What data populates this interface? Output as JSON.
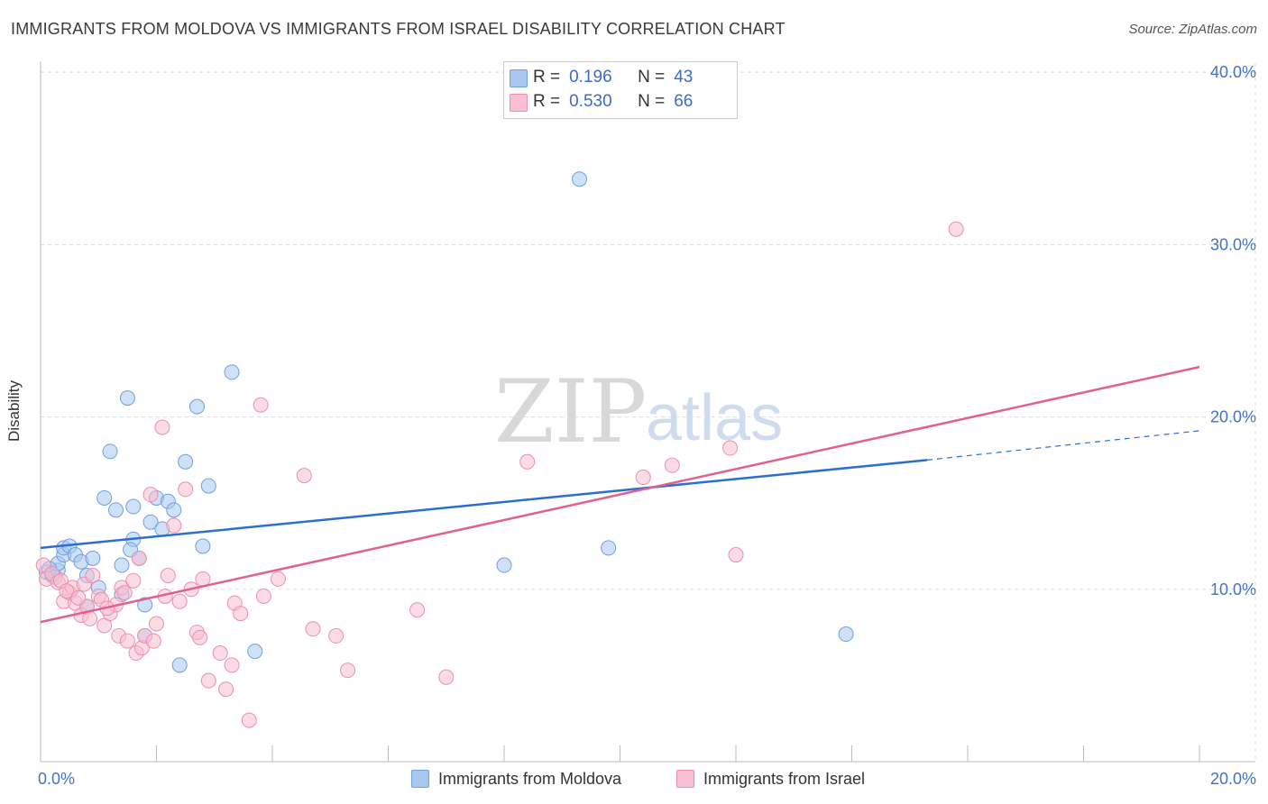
{
  "title": "IMMIGRANTS FROM MOLDOVA VS IMMIGRANTS FROM ISRAEL DISABILITY CORRELATION CHART",
  "source": "Source: ZipAtlas.com",
  "legend_top": [
    {
      "r_label": "R =",
      "r_value": "0.196",
      "n_label": "N =",
      "n_value": "43",
      "color": "#a8c8f0",
      "border": "#6f9fe0"
    },
    {
      "r_label": "R =",
      "r_value": "0.530",
      "n_label": "N =",
      "n_value": "66",
      "color": "#f8c0d0",
      "border": "#ec8fae"
    }
  ],
  "legend_bottom": [
    {
      "label": "Immigrants from Moldova",
      "color": "#a8c8f0",
      "border": "#6f9fe0"
    },
    {
      "label": "Immigrants from Israel",
      "color": "#f8c0d0",
      "border": "#ec8fae"
    }
  ],
  "watermark": {
    "zip": "ZIP",
    "atlas": "atlas"
  },
  "chart_data": {
    "type": "scatter",
    "title": "IMMIGRANTS FROM MOLDOVA VS IMMIGRANTS FROM ISRAEL DISABILITY CORRELATION CHART",
    "xlabel": "",
    "ylabel": "Disability",
    "xlim": [
      0,
      20
    ],
    "ylim": [
      0,
      40
    ],
    "x_ticks": [
      {
        "value": 0,
        "label": "0.0%"
      },
      {
        "value": 20,
        "label": "20.0%"
      }
    ],
    "y_ticks": [
      {
        "value": 10,
        "label": "10.0%"
      },
      {
        "value": 20,
        "label": "20.0%"
      },
      {
        "value": 30,
        "label": "30.0%"
      },
      {
        "value": 40,
        "label": "40.0%"
      }
    ],
    "grid": true,
    "series": [
      {
        "name": "Immigrants from Moldova",
        "color": "#6f9fe0",
        "fill": "#a8c8f0",
        "trend_color": "#2a6fd0",
        "trend": {
          "x0": 0,
          "y0": 12.4,
          "x1": 15.3,
          "y1": 17.5,
          "dash_to_x": 20,
          "dash_to_y": 19.2
        },
        "points": [
          [
            0.1,
            11.0
          ],
          [
            0.2,
            10.8
          ],
          [
            0.3,
            11.1
          ],
          [
            0.3,
            11.5
          ],
          [
            0.4,
            12.0
          ],
          [
            0.4,
            12.4
          ],
          [
            0.5,
            12.5
          ],
          [
            0.6,
            12.0
          ],
          [
            0.7,
            11.6
          ],
          [
            0.8,
            10.8
          ],
          [
            0.8,
            9.0
          ],
          [
            0.9,
            11.8
          ],
          [
            1.0,
            10.1
          ],
          [
            1.1,
            15.3
          ],
          [
            1.3,
            14.6
          ],
          [
            1.2,
            18.0
          ],
          [
            1.4,
            9.7
          ],
          [
            1.4,
            11.4
          ],
          [
            1.5,
            21.1
          ],
          [
            1.6,
            14.8
          ],
          [
            1.6,
            12.9
          ],
          [
            1.7,
            11.8
          ],
          [
            1.8,
            9.1
          ],
          [
            1.8,
            7.3
          ],
          [
            1.9,
            13.9
          ],
          [
            2.0,
            15.3
          ],
          [
            2.1,
            13.5
          ],
          [
            2.2,
            15.1
          ],
          [
            2.3,
            14.6
          ],
          [
            2.4,
            5.6
          ],
          [
            2.5,
            17.4
          ],
          [
            2.7,
            20.6
          ],
          [
            2.8,
            12.5
          ],
          [
            2.9,
            16.0
          ],
          [
            3.3,
            22.6
          ],
          [
            3.7,
            6.4
          ],
          [
            8.0,
            11.4
          ],
          [
            9.3,
            33.8
          ],
          [
            9.8,
            12.4
          ],
          [
            13.9,
            7.4
          ],
          [
            0.15,
            11.2
          ],
          [
            0.25,
            10.7
          ],
          [
            1.55,
            12.3
          ]
        ]
      },
      {
        "name": "Immigrants from Israel",
        "color": "#ec8fae",
        "fill": "#f8c0d0",
        "trend_color": "#e0608e",
        "trend": {
          "x0": 0,
          "y0": 8.1,
          "x1": 20,
          "y1": 22.9
        },
        "points": [
          [
            0.05,
            11.4
          ],
          [
            0.1,
            10.6
          ],
          [
            0.2,
            10.9
          ],
          [
            0.3,
            10.4
          ],
          [
            0.35,
            10.5
          ],
          [
            0.4,
            9.3
          ],
          [
            0.5,
            9.8
          ],
          [
            0.55,
            10.1
          ],
          [
            0.6,
            9.2
          ],
          [
            0.7,
            8.5
          ],
          [
            0.75,
            10.3
          ],
          [
            0.8,
            9.0
          ],
          [
            0.85,
            8.3
          ],
          [
            0.9,
            10.8
          ],
          [
            1.0,
            9.6
          ],
          [
            1.05,
            9.4
          ],
          [
            1.1,
            7.9
          ],
          [
            1.2,
            8.6
          ],
          [
            1.3,
            9.1
          ],
          [
            1.35,
            7.3
          ],
          [
            1.4,
            10.1
          ],
          [
            1.45,
            9.8
          ],
          [
            1.5,
            7.0
          ],
          [
            1.6,
            10.5
          ],
          [
            1.65,
            6.3
          ],
          [
            1.7,
            11.8
          ],
          [
            1.75,
            6.6
          ],
          [
            1.8,
            7.3
          ],
          [
            1.9,
            15.5
          ],
          [
            1.95,
            7.0
          ],
          [
            2.0,
            8.0
          ],
          [
            2.1,
            19.4
          ],
          [
            2.15,
            9.6
          ],
          [
            2.2,
            10.8
          ],
          [
            2.3,
            13.7
          ],
          [
            2.4,
            9.3
          ],
          [
            2.5,
            15.8
          ],
          [
            2.6,
            10.0
          ],
          [
            2.7,
            7.5
          ],
          [
            2.75,
            7.2
          ],
          [
            2.8,
            10.6
          ],
          [
            2.9,
            4.7
          ],
          [
            3.1,
            6.3
          ],
          [
            3.2,
            4.2
          ],
          [
            3.3,
            5.6
          ],
          [
            3.35,
            9.2
          ],
          [
            3.45,
            8.6
          ],
          [
            3.6,
            2.4
          ],
          [
            3.8,
            20.7
          ],
          [
            3.85,
            9.6
          ],
          [
            4.1,
            10.6
          ],
          [
            4.55,
            16.6
          ],
          [
            4.7,
            7.7
          ],
          [
            5.1,
            7.3
          ],
          [
            5.3,
            5.3
          ],
          [
            6.5,
            8.8
          ],
          [
            7.0,
            4.9
          ],
          [
            8.4,
            17.4
          ],
          [
            10.4,
            16.5
          ],
          [
            10.9,
            17.2
          ],
          [
            11.9,
            18.2
          ],
          [
            12.0,
            12.0
          ],
          [
            15.8,
            30.9
          ],
          [
            0.45,
            9.9
          ],
          [
            0.65,
            9.5
          ],
          [
            1.15,
            8.9
          ]
        ]
      }
    ]
  }
}
